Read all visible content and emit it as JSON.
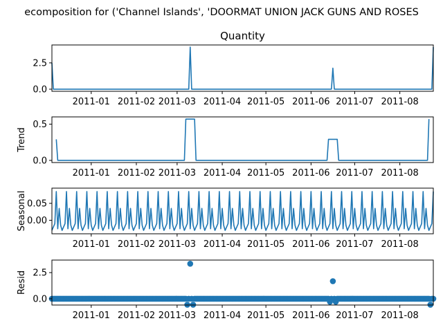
{
  "chart_data": {
    "type": "line",
    "suptitle": "ecomposition for ('Channel Islands', 'DOORMAT UNION JACK GUNS AND ROSES",
    "x_range": [
      "2010-12-05",
      "2011-08-24"
    ],
    "x_ticks": [
      "2011-01",
      "2011-02",
      "2011-03",
      "2011-04",
      "2011-05",
      "2011-06",
      "2011-07",
      "2011-08"
    ],
    "panels": [
      {
        "name": "observed",
        "title": "Quantity",
        "ylabel": "",
        "kind": "line",
        "ylim": [
          -0.2,
          4.2
        ],
        "yticks": [
          "0.0",
          "2.5"
        ],
        "baseline": 0,
        "points": [
          [
            "2010-12-05",
            2.5
          ],
          [
            "2010-12-06",
            0
          ],
          [
            "2011-03-09",
            0
          ],
          [
            "2011-03-10",
            4
          ],
          [
            "2011-03-11",
            0
          ],
          [
            "2011-06-15",
            0
          ],
          [
            "2011-06-16",
            2
          ],
          [
            "2011-06-17",
            0
          ],
          [
            "2011-08-23",
            0
          ],
          [
            "2011-08-24",
            4
          ]
        ]
      },
      {
        "name": "trend",
        "title": "",
        "ylabel": "Trend",
        "kind": "line",
        "ylim": [
          -0.03,
          0.6
        ],
        "yticks": [
          "0.0",
          "0.5"
        ],
        "points": [
          [
            "2010-12-08",
            0.29
          ],
          [
            "2010-12-09",
            0
          ],
          [
            "2011-03-06",
            0
          ],
          [
            "2011-03-07",
            0.57
          ],
          [
            "2011-03-13",
            0.57
          ],
          [
            "2011-03-14",
            0
          ],
          [
            "2011-06-12",
            0
          ],
          [
            "2011-06-13",
            0.29
          ],
          [
            "2011-06-19",
            0.29
          ],
          [
            "2011-06-20",
            0
          ],
          [
            "2011-08-20",
            0
          ],
          [
            "2011-08-21",
            0.57
          ]
        ]
      },
      {
        "name": "seasonal",
        "title": "",
        "ylabel": "Seasonal",
        "kind": "line",
        "ylim": [
          -0.04,
          0.095
        ],
        "yticks": [
          "0.00",
          "0.05"
        ],
        "period_days": 7,
        "pattern": [
          -0.03,
          -0.02,
          -0.01,
          0.085,
          -0.025,
          0.035,
          -0.015
        ]
      },
      {
        "name": "resid",
        "title": "",
        "ylabel": "Resid",
        "kind": "scatter",
        "ylim": [
          -0.6,
          3.7
        ],
        "yticks": [
          "0.0",
          "2.5"
        ],
        "baseline": 0,
        "points": [
          [
            "2011-03-10",
            3.35
          ],
          [
            "2011-06-16",
            1.68
          ],
          [
            "2011-03-08",
            -0.57
          ],
          [
            "2011-03-12",
            -0.57
          ],
          [
            "2011-06-14",
            -0.29
          ],
          [
            "2011-06-18",
            -0.29
          ],
          [
            "2011-08-22",
            -0.57
          ]
        ]
      }
    ],
    "series_color": "#1f77b4"
  }
}
